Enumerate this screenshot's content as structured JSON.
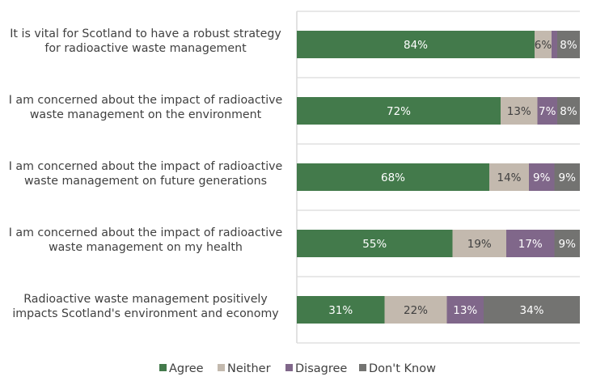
{
  "chart_data": {
    "type": "bar",
    "orientation": "horizontal",
    "stacked": true,
    "title": "",
    "xlabel": "",
    "ylabel": "",
    "xlim": [
      0,
      100
    ],
    "grid": true,
    "legend_position": "bottom",
    "categories": [
      [
        "It is vital for Scotland to have a robust strategy",
        "for radioactive waste management"
      ],
      [
        "I am concerned about the impact of radioactive",
        "waste management on the environment"
      ],
      [
        "I am concerned about the impact of radioactive",
        "waste management on future generations"
      ],
      [
        "I am concerned about the impact of radioactive",
        "waste management on my health"
      ],
      [
        "Radioactive waste management positively",
        "impacts Scotland's environment and economy"
      ]
    ],
    "series": [
      {
        "name": "Agree",
        "color": "#437a4b",
        "label_color": "#ffffff",
        "values": [
          84,
          72,
          68,
          55,
          31
        ],
        "labels": [
          "84%",
          "72%",
          "68%",
          "55%",
          "31%"
        ]
      },
      {
        "name": "Neither",
        "color": "#c3b9ae",
        "label_color": "#404040",
        "values": [
          6,
          13,
          14,
          19,
          22
        ],
        "labels": [
          "6%",
          "13%",
          "14%",
          "19%",
          "22%"
        ]
      },
      {
        "name": "Disagree",
        "color": "#80678a",
        "label_color": "#ffffff",
        "values": [
          2,
          7,
          9,
          17,
          13
        ],
        "labels": [
          "",
          "7%",
          "9%",
          "17%",
          "13%"
        ]
      },
      {
        "name": "Don't Know",
        "color": "#737371",
        "label_color": "#ffffff",
        "values": [
          8,
          8,
          9,
          9,
          34
        ],
        "labels": [
          "8%",
          "8%",
          "9%",
          "9%",
          "34%"
        ]
      }
    ]
  }
}
